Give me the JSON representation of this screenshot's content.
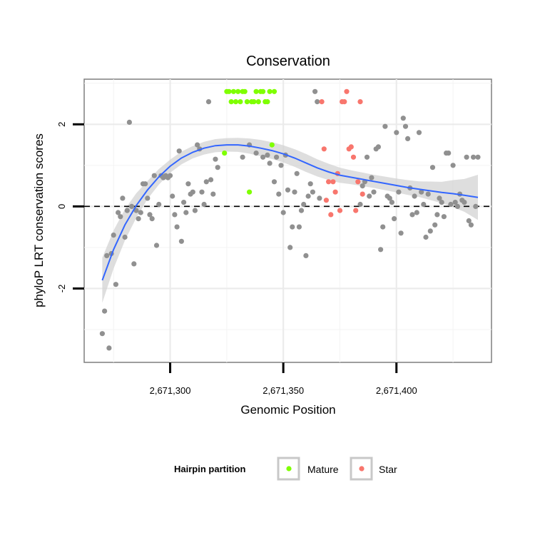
{
  "chart_data": {
    "type": "scatter",
    "title": "Conservation",
    "xlabel": "Genomic Position",
    "ylabel": "phyloP LRT conservation scores",
    "xlim": [
      2671262,
      2671442
    ],
    "ylim": [
      -3.8,
      3.1
    ],
    "x_ticks": [
      {
        "value": 2671300,
        "label": "2,671,300"
      },
      {
        "value": 2671350,
        "label": "2,671,350"
      },
      {
        "value": 2671400,
        "label": "2,671,400"
      }
    ],
    "y_ticks": [
      {
        "value": -2,
        "label": "-2"
      },
      {
        "value": 0,
        "label": "0"
      },
      {
        "value": 2,
        "label": "2"
      }
    ],
    "grid": true,
    "reference_line": {
      "y": 0,
      "style": "dashed"
    },
    "legend": {
      "title": "Hairpin partition",
      "position": "bottom",
      "entries": [
        {
          "name": "Mature",
          "color": "#7FFF00"
        },
        {
          "name": "Star",
          "color": "#F8766D"
        }
      ]
    },
    "colors": {
      "other": "#909090",
      "mature": "#7FFF00",
      "star": "#F8766D",
      "smooth": "#3366FF",
      "band": "#D3D3D3"
    },
    "series": [
      {
        "group": "other",
        "points": [
          [
            2671270,
            -3.1
          ],
          [
            2671271,
            -2.55
          ],
          [
            2671272,
            -1.2
          ],
          [
            2671273,
            -3.45
          ],
          [
            2671274,
            -1.15
          ],
          [
            2671275,
            -0.7
          ],
          [
            2671276,
            -1.9
          ],
          [
            2671277,
            -0.15
          ],
          [
            2671278,
            -0.25
          ],
          [
            2671279,
            0.2
          ],
          [
            2671280,
            -0.75
          ],
          [
            2671281,
            -0.1
          ],
          [
            2671282,
            2.05
          ],
          [
            2671283,
            0.0
          ],
          [
            2671284,
            -1.4
          ],
          [
            2671285,
            -0.1
          ],
          [
            2671286,
            -0.3
          ],
          [
            2671287,
            -0.15
          ],
          [
            2671288,
            0.55
          ],
          [
            2671289,
            0.55
          ],
          [
            2671290,
            0.2
          ],
          [
            2671291,
            -0.2
          ],
          [
            2671292,
            -0.3
          ],
          [
            2671293,
            0.75
          ],
          [
            2671294,
            -0.95
          ],
          [
            2671295,
            0.05
          ],
          [
            2671296,
            0.75
          ],
          [
            2671297,
            0.7
          ],
          [
            2671298,
            0.75
          ],
          [
            2671299,
            0.7
          ],
          [
            2671300,
            0.75
          ],
          [
            2671301,
            0.25
          ],
          [
            2671302,
            -0.2
          ],
          [
            2671303,
            -0.5
          ],
          [
            2671304,
            1.35
          ],
          [
            2671305,
            -0.85
          ],
          [
            2671306,
            0.1
          ],
          [
            2671307,
            -0.15
          ],
          [
            2671308,
            0.55
          ],
          [
            2671309,
            0.3
          ],
          [
            2671310,
            0.35
          ],
          [
            2671311,
            -0.1
          ],
          [
            2671312,
            1.5
          ],
          [
            2671313,
            1.4
          ],
          [
            2671314,
            0.35
          ],
          [
            2671315,
            0.05
          ],
          [
            2671316,
            0.6
          ],
          [
            2671317,
            2.55
          ],
          [
            2671318,
            0.65
          ],
          [
            2671319,
            0.3
          ],
          [
            2671320,
            1.15
          ],
          [
            2671321,
            0.95
          ],
          [
            2671332,
            1.2
          ],
          [
            2671335,
            1.5
          ],
          [
            2671338,
            1.3
          ],
          [
            2671341,
            1.2
          ],
          [
            2671343,
            1.25
          ],
          [
            2671344,
            1.05
          ],
          [
            2671346,
            0.6
          ],
          [
            2671347,
            1.2
          ],
          [
            2671348,
            0.3
          ],
          [
            2671349,
            1.0
          ],
          [
            2671350,
            -0.15
          ],
          [
            2671351,
            1.25
          ],
          [
            2671352,
            0.4
          ],
          [
            2671353,
            -1.0
          ],
          [
            2671354,
            -0.5
          ],
          [
            2671355,
            0.35
          ],
          [
            2671356,
            0.8
          ],
          [
            2671357,
            -0.5
          ],
          [
            2671358,
            -0.1
          ],
          [
            2671359,
            0.05
          ],
          [
            2671360,
            -1.2
          ],
          [
            2671361,
            0.25
          ],
          [
            2671362,
            0.55
          ],
          [
            2671363,
            0.35
          ],
          [
            2671364,
            2.8
          ],
          [
            2671365,
            2.55
          ],
          [
            2671366,
            0.2
          ],
          [
            2671384,
            0.05
          ],
          [
            2671385,
            0.5
          ],
          [
            2671386,
            0.6
          ],
          [
            2671387,
            1.2
          ],
          [
            2671388,
            0.25
          ],
          [
            2671389,
            0.7
          ],
          [
            2671390,
            0.35
          ],
          [
            2671391,
            1.4
          ],
          [
            2671392,
            1.45
          ],
          [
            2671393,
            -1.05
          ],
          [
            2671394,
            -0.5
          ],
          [
            2671395,
            1.95
          ],
          [
            2671396,
            0.25
          ],
          [
            2671397,
            0.2
          ],
          [
            2671398,
            0.1
          ],
          [
            2671399,
            -0.3
          ],
          [
            2671400,
            1.8
          ],
          [
            2671401,
            0.35
          ],
          [
            2671402,
            -0.65
          ],
          [
            2671403,
            2.15
          ],
          [
            2671404,
            1.95
          ],
          [
            2671405,
            1.65
          ],
          [
            2671406,
            0.45
          ],
          [
            2671407,
            -0.2
          ],
          [
            2671408,
            0.25
          ],
          [
            2671409,
            -0.15
          ],
          [
            2671410,
            1.8
          ],
          [
            2671411,
            0.35
          ],
          [
            2671412,
            0.05
          ],
          [
            2671413,
            -0.75
          ],
          [
            2671414,
            0.3
          ],
          [
            2671415,
            -0.6
          ],
          [
            2671416,
            0.95
          ],
          [
            2671417,
            -0.45
          ],
          [
            2671418,
            -0.2
          ],
          [
            2671419,
            0.2
          ],
          [
            2671420,
            0.1
          ],
          [
            2671421,
            -0.25
          ],
          [
            2671422,
            1.3
          ],
          [
            2671423,
            1.3
          ],
          [
            2671424,
            0.05
          ],
          [
            2671425,
            1.0
          ],
          [
            2671426,
            0.1
          ],
          [
            2671427,
            0.0
          ],
          [
            2671428,
            0.3
          ],
          [
            2671429,
            0.15
          ],
          [
            2671430,
            0.1
          ],
          [
            2671431,
            1.2
          ],
          [
            2671432,
            -0.35
          ],
          [
            2671433,
            -0.45
          ],
          [
            2671434,
            1.2
          ],
          [
            2671435,
            0.0
          ],
          [
            2671436,
            1.2
          ]
        ]
      },
      {
        "group": "mature",
        "name": "Mature",
        "points": [
          [
            2671324,
            1.3
          ],
          [
            2671325,
            2.8
          ],
          [
            2671326,
            2.8
          ],
          [
            2671327,
            2.55
          ],
          [
            2671328,
            2.8
          ],
          [
            2671329,
            2.55
          ],
          [
            2671330,
            2.8
          ],
          [
            2671331,
            2.55
          ],
          [
            2671332,
            2.8
          ],
          [
            2671333,
            2.8
          ],
          [
            2671334,
            2.55
          ],
          [
            2671335,
            0.35
          ],
          [
            2671336,
            2.55
          ],
          [
            2671337,
            2.55
          ],
          [
            2671338,
            2.8
          ],
          [
            2671339,
            2.55
          ],
          [
            2671340,
            2.8
          ],
          [
            2671341,
            2.8
          ],
          [
            2671342,
            2.55
          ],
          [
            2671343,
            2.55
          ],
          [
            2671344,
            2.8
          ],
          [
            2671345,
            1.5
          ],
          [
            2671346,
            2.8
          ]
        ]
      },
      {
        "group": "star",
        "name": "Star",
        "points": [
          [
            2671367,
            2.55
          ],
          [
            2671368,
            1.4
          ],
          [
            2671369,
            0.15
          ],
          [
            2671370,
            0.6
          ],
          [
            2671371,
            -0.2
          ],
          [
            2671372,
            0.6
          ],
          [
            2671373,
            0.35
          ],
          [
            2671374,
            0.8
          ],
          [
            2671375,
            -0.1
          ],
          [
            2671376,
            2.55
          ],
          [
            2671377,
            2.55
          ],
          [
            2671378,
            2.8
          ],
          [
            2671379,
            1.4
          ],
          [
            2671380,
            1.45
          ],
          [
            2671381,
            1.2
          ],
          [
            2671382,
            -0.1
          ],
          [
            2671383,
            0.6
          ],
          [
            2671384,
            2.55
          ],
          [
            2671385,
            0.3
          ]
        ]
      }
    ],
    "smooth": [
      [
        2671270,
        -1.8
      ],
      [
        2671275,
        -1.05
      ],
      [
        2671280,
        -0.45
      ],
      [
        2671285,
        0.02
      ],
      [
        2671290,
        0.4
      ],
      [
        2671295,
        0.72
      ],
      [
        2671300,
        0.98
      ],
      [
        2671305,
        1.18
      ],
      [
        2671310,
        1.32
      ],
      [
        2671315,
        1.42
      ],
      [
        2671320,
        1.48
      ],
      [
        2671325,
        1.5
      ],
      [
        2671330,
        1.5
      ],
      [
        2671335,
        1.47
      ],
      [
        2671340,
        1.42
      ],
      [
        2671345,
        1.36
      ],
      [
        2671350,
        1.28
      ],
      [
        2671355,
        1.18
      ],
      [
        2671360,
        1.06
      ],
      [
        2671365,
        0.94
      ],
      [
        2671370,
        0.84
      ],
      [
        2671375,
        0.76
      ],
      [
        2671380,
        0.71
      ],
      [
        2671385,
        0.66
      ],
      [
        2671390,
        0.61
      ],
      [
        2671395,
        0.56
      ],
      [
        2671400,
        0.51
      ],
      [
        2671405,
        0.46
      ],
      [
        2671410,
        0.42
      ],
      [
        2671415,
        0.38
      ],
      [
        2671420,
        0.34
      ],
      [
        2671425,
        0.31
      ],
      [
        2671430,
        0.27
      ],
      [
        2671436,
        0.22
      ]
    ],
    "smooth_band_halfwidth": [
      [
        2671270,
        0.55
      ],
      [
        2671280,
        0.38
      ],
      [
        2671290,
        0.22
      ],
      [
        2671300,
        0.16
      ],
      [
        2671310,
        0.15
      ],
      [
        2671320,
        0.16
      ],
      [
        2671330,
        0.17
      ],
      [
        2671340,
        0.2
      ],
      [
        2671350,
        0.21
      ],
      [
        2671360,
        0.22
      ],
      [
        2671370,
        0.2
      ],
      [
        2671380,
        0.17
      ],
      [
        2671390,
        0.16
      ],
      [
        2671400,
        0.17
      ],
      [
        2671410,
        0.19
      ],
      [
        2671420,
        0.26
      ],
      [
        2671430,
        0.4
      ],
      [
        2671436,
        0.55
      ]
    ]
  }
}
